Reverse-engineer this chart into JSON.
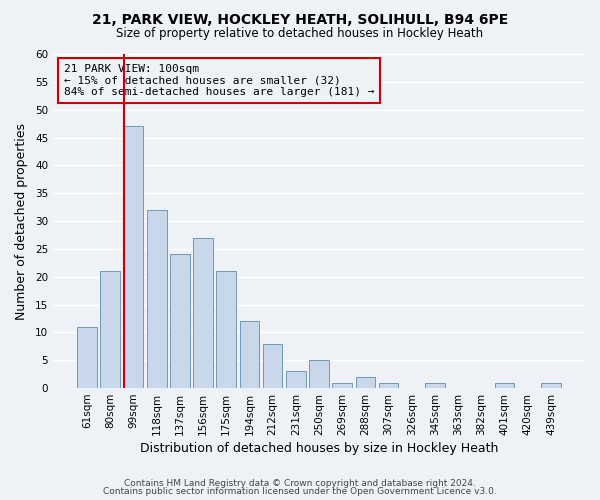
{
  "title": "21, PARK VIEW, HOCKLEY HEATH, SOLIHULL, B94 6PE",
  "subtitle": "Size of property relative to detached houses in Hockley Heath",
  "xlabel": "Distribution of detached houses by size in Hockley Heath",
  "ylabel": "Number of detached properties",
  "bar_color": "#c8d8ea",
  "bar_edge_color": "#7098b8",
  "categories": [
    "61sqm",
    "80sqm",
    "99sqm",
    "118sqm",
    "137sqm",
    "156sqm",
    "175sqm",
    "194sqm",
    "212sqm",
    "231sqm",
    "250sqm",
    "269sqm",
    "288sqm",
    "307sqm",
    "326sqm",
    "345sqm",
    "363sqm",
    "382sqm",
    "401sqm",
    "420sqm",
    "439sqm"
  ],
  "values": [
    11,
    21,
    47,
    32,
    24,
    27,
    21,
    12,
    8,
    3,
    5,
    1,
    2,
    1,
    0,
    1,
    0,
    0,
    1,
    0,
    1
  ],
  "ylim": [
    0,
    60
  ],
  "yticks": [
    0,
    5,
    10,
    15,
    20,
    25,
    30,
    35,
    40,
    45,
    50,
    55,
    60
  ],
  "vline_color": "#cc0000",
  "annotation_title": "21 PARK VIEW: 100sqm",
  "annotation_line1": "← 15% of detached houses are smaller (32)",
  "annotation_line2": "84% of semi-detached houses are larger (181) →",
  "annotation_box_color": "#cc0000",
  "footnote1": "Contains HM Land Registry data © Crown copyright and database right 2024.",
  "footnote2": "Contains public sector information licensed under the Open Government Licence v3.0.",
  "background_color": "#eef2f6",
  "grid_color": "#ffffff"
}
